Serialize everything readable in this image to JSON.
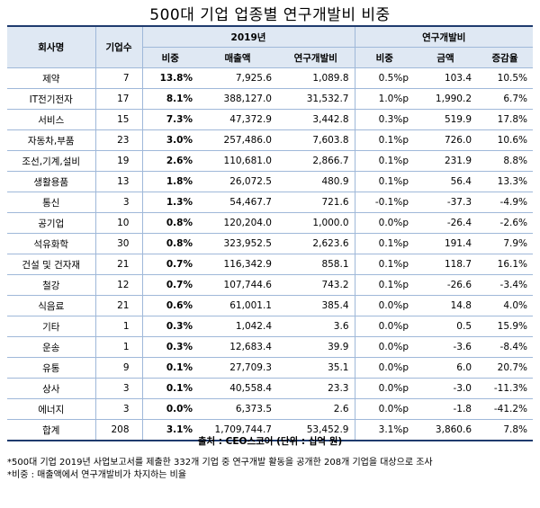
{
  "title": "500대 기업 업종별 연구개발비 비중",
  "headers": {
    "company": "회사명",
    "count": "기업수",
    "group_2019": "2019년",
    "group_rnd": "연구개발비",
    "share": "비중",
    "sales": "매출액",
    "rnd": "연구개발비",
    "rnd_share": "비중",
    "amount": "금액",
    "growth": "증감율"
  },
  "rows": [
    {
      "name": "제약",
      "count": "7",
      "share": "13.8%",
      "sales": "7,925.6",
      "rnd": "1,089.8",
      "share_change": "0.5%p",
      "amount": "103.4",
      "growth": "10.5%"
    },
    {
      "name": "IT전기전자",
      "count": "17",
      "share": "8.1%",
      "sales": "388,127.0",
      "rnd": "31,532.7",
      "share_change": "1.0%p",
      "amount": "1,990.2",
      "growth": "6.7%"
    },
    {
      "name": "서비스",
      "count": "15",
      "share": "7.3%",
      "sales": "47,372.9",
      "rnd": "3,442.8",
      "share_change": "0.3%p",
      "amount": "519.9",
      "growth": "17.8%"
    },
    {
      "name": "자동차,부품",
      "count": "23",
      "share": "3.0%",
      "sales": "257,486.0",
      "rnd": "7,603.8",
      "share_change": "0.1%p",
      "amount": "726.0",
      "growth": "10.6%"
    },
    {
      "name": "조선,기계,설비",
      "count": "19",
      "share": "2.6%",
      "sales": "110,681.0",
      "rnd": "2,866.7",
      "share_change": "0.1%p",
      "amount": "231.9",
      "growth": "8.8%"
    },
    {
      "name": "생활용품",
      "count": "13",
      "share": "1.8%",
      "sales": "26,072.5",
      "rnd": "480.9",
      "share_change": "0.1%p",
      "amount": "56.4",
      "growth": "13.3%"
    },
    {
      "name": "통신",
      "count": "3",
      "share": "1.3%",
      "sales": "54,467.7",
      "rnd": "721.6",
      "share_change": "-0.1%p",
      "amount": "-37.3",
      "growth": "-4.9%"
    },
    {
      "name": "공기업",
      "count": "10",
      "share": "0.8%",
      "sales": "120,204.0",
      "rnd": "1,000.0",
      "share_change": "0.0%p",
      "amount": "-26.4",
      "growth": "-2.6%"
    },
    {
      "name": "석유화학",
      "count": "30",
      "share": "0.8%",
      "sales": "323,952.5",
      "rnd": "2,623.6",
      "share_change": "0.1%p",
      "amount": "191.4",
      "growth": "7.9%"
    },
    {
      "name": "건설 및 건자재",
      "count": "21",
      "share": "0.7%",
      "sales": "116,342.9",
      "rnd": "858.1",
      "share_change": "0.1%p",
      "amount": "118.7",
      "growth": "16.1%"
    },
    {
      "name": "철강",
      "count": "12",
      "share": "0.7%",
      "sales": "107,744.6",
      "rnd": "743.2",
      "share_change": "0.1%p",
      "amount": "-26.6",
      "growth": "-3.4%"
    },
    {
      "name": "식음료",
      "count": "21",
      "share": "0.6%",
      "sales": "61,001.1",
      "rnd": "385.4",
      "share_change": "0.0%p",
      "amount": "14.8",
      "growth": "4.0%"
    },
    {
      "name": "기타",
      "count": "1",
      "share": "0.3%",
      "sales": "1,042.4",
      "rnd": "3.6",
      "share_change": "0.0%p",
      "amount": "0.5",
      "growth": "15.9%"
    },
    {
      "name": "운송",
      "count": "1",
      "share": "0.3%",
      "sales": "12,683.4",
      "rnd": "39.9",
      "share_change": "0.0%p",
      "amount": "-3.6",
      "growth": "-8.4%"
    },
    {
      "name": "유통",
      "count": "9",
      "share": "0.1%",
      "sales": "27,709.3",
      "rnd": "35.1",
      "share_change": "0.0%p",
      "amount": "6.0",
      "growth": "20.7%"
    },
    {
      "name": "상사",
      "count": "3",
      "share": "0.1%",
      "sales": "40,558.4",
      "rnd": "23.3",
      "share_change": "0.0%p",
      "amount": "-3.0",
      "growth": "-11.3%"
    },
    {
      "name": "에너지",
      "count": "3",
      "share": "0.0%",
      "sales": "6,373.5",
      "rnd": "2.6",
      "share_change": "0.0%p",
      "amount": "-1.8",
      "growth": "-41.2%"
    },
    {
      "name": "합계",
      "count": "208",
      "share": "3.1%",
      "sales": "1,709,744.7",
      "rnd": "53,452.9",
      "share_change": "3.1%p",
      "amount": "3,860.6",
      "growth": "7.8%"
    }
  ],
  "source": "출처 : CEO스코어 (단위 : 십억 원)",
  "notes": [
    "*500대 기업 2019년 사업보고서를 제출한 332개 기업 중 연구개발 활동을 공개한 208개 기업을 대상으로 조사",
    "*비중 : 매출액에서 연구개발비가 차지하는 비율"
  ]
}
